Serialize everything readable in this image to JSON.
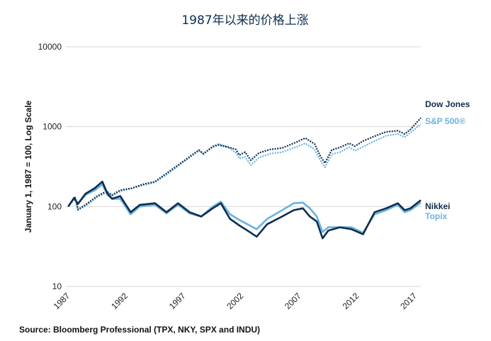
{
  "chart_data": {
    "type": "line",
    "title": "1987年以来的价格上涨",
    "ylabel": "January 1, 1987 = 100, Log Scale",
    "yscale": "log",
    "ylim": [
      10,
      10000
    ],
    "xlim": [
      1986.8,
      2017.5
    ],
    "yticks": [
      {
        "value": 10,
        "label": "10"
      },
      {
        "value": 100,
        "label": "100"
      },
      {
        "value": 1000,
        "label": "1000"
      },
      {
        "value": 10000,
        "label": "10000"
      }
    ],
    "xticks": [
      {
        "value": 1987,
        "label": "1987"
      },
      {
        "value": 1992,
        "label": "1992"
      },
      {
        "value": 1997,
        "label": "1997"
      },
      {
        "value": 2002,
        "label": "2002"
      },
      {
        "value": 2007,
        "label": "2007"
      },
      {
        "value": 2012,
        "label": "2012"
      },
      {
        "value": 2017,
        "label": "2017"
      }
    ],
    "grid": "horizontal",
    "legend_placement": "right",
    "source": "Source: Bloomberg Professional (TPX, NKY, SPX and INDU)",
    "series": [
      {
        "name": "Dow Jones",
        "color": "#0f2d4f",
        "style": "dotted",
        "x": [
          1987.0,
          1987.6,
          1987.85,
          1988.5,
          1989.5,
          1990.3,
          1990.8,
          1991.5,
          1992.5,
          1993.5,
          1994.5,
          1995.5,
          1996.5,
          1997.5,
          1998.3,
          1998.7,
          1999.5,
          2000.0,
          2000.8,
          2001.5,
          2001.8,
          2002.3,
          2002.8,
          2003.5,
          2004.5,
          2005.5,
          2006.5,
          2007.5,
          2008.3,
          2008.8,
          2009.2,
          2009.8,
          2010.5,
          2011.3,
          2011.8,
          2012.5,
          2013.5,
          2014.5,
          2015.5,
          2016.1,
          2016.6,
          2017.5
        ],
        "values": [
          100,
          130,
          92,
          105,
          135,
          155,
          140,
          160,
          170,
          190,
          205,
          260,
          330,
          420,
          510,
          460,
          560,
          590,
          555,
          520,
          440,
          480,
          380,
          470,
          520,
          540,
          620,
          720,
          610,
          430,
          350,
          510,
          550,
          620,
          570,
          660,
          760,
          860,
          890,
          810,
          920,
          1290
        ]
      },
      {
        "name": "S&P 500®",
        "color": "#6ab2e0",
        "style": "dotted",
        "x": [
          1987.0,
          1987.6,
          1987.85,
          1988.5,
          1989.5,
          1990.3,
          1990.8,
          1991.5,
          1992.5,
          1993.5,
          1994.5,
          1995.5,
          1996.5,
          1997.5,
          1998.3,
          1998.7,
          1999.5,
          2000.0,
          2000.8,
          2001.5,
          2001.8,
          2002.3,
          2002.8,
          2003.5,
          2004.5,
          2005.5,
          2006.5,
          2007.5,
          2008.3,
          2008.8,
          2009.2,
          2009.8,
          2010.5,
          2011.3,
          2011.8,
          2012.5,
          2013.5,
          2014.5,
          2015.5,
          2016.1,
          2016.6,
          2017.5
        ],
        "values": [
          100,
          128,
          90,
          102,
          130,
          150,
          135,
          155,
          168,
          185,
          200,
          250,
          320,
          410,
          500,
          450,
          570,
          610,
          560,
          470,
          400,
          420,
          330,
          410,
          460,
          480,
          540,
          620,
          520,
          380,
          310,
          450,
          480,
          550,
          500,
          560,
          660,
          770,
          810,
          740,
          840,
          1080
        ]
      },
      {
        "name": "Nikkei",
        "color": "#0f2d4f",
        "style": "solid",
        "x": [
          1987.0,
          1987.5,
          1987.85,
          1988.5,
          1989.3,
          1989.95,
          1990.4,
          1990.8,
          1991.5,
          1992.4,
          1993.2,
          1994.5,
          1995.5,
          1996.5,
          1997.5,
          1998.5,
          1999.5,
          2000.2,
          2001.0,
          2001.8,
          2002.5,
          2003.3,
          2004.2,
          2005.5,
          2006.5,
          2007.3,
          2007.9,
          2008.5,
          2009.0,
          2009.5,
          2010.5,
          2011.5,
          2012.5,
          2013.5,
          2014.5,
          2015.5,
          2016.1,
          2016.6,
          2017.5
        ],
        "values": [
          100,
          128,
          108,
          145,
          170,
          205,
          145,
          125,
          135,
          85,
          105,
          110,
          85,
          110,
          85,
          75,
          95,
          110,
          70,
          58,
          50,
          42,
          60,
          75,
          90,
          95,
          75,
          65,
          40,
          50,
          55,
          52,
          45,
          85,
          95,
          110,
          90,
          95,
          120
        ]
      },
      {
        "name": "Topix",
        "color": "#6ab2e0",
        "style": "solid",
        "x": [
          1987.0,
          1987.5,
          1987.85,
          1988.5,
          1989.3,
          1989.95,
          1990.4,
          1990.8,
          1991.5,
          1992.4,
          1993.2,
          1994.5,
          1995.5,
          1996.5,
          1997.5,
          1998.5,
          1999.5,
          2000.2,
          2001.0,
          2001.8,
          2002.5,
          2003.3,
          2004.2,
          2005.5,
          2006.5,
          2007.3,
          2007.9,
          2008.5,
          2009.0,
          2009.5,
          2010.5,
          2011.5,
          2012.5,
          2013.5,
          2014.5,
          2015.5,
          2016.1,
          2016.6,
          2017.5
        ],
        "values": [
          100,
          125,
          110,
          140,
          160,
          190,
          140,
          125,
          125,
          80,
          100,
          105,
          82,
          105,
          82,
          75,
          100,
          115,
          80,
          68,
          60,
          52,
          70,
          90,
          110,
          112,
          95,
          75,
          48,
          55,
          55,
          55,
          47,
          80,
          90,
          105,
          85,
          90,
          112
        ]
      }
    ]
  }
}
